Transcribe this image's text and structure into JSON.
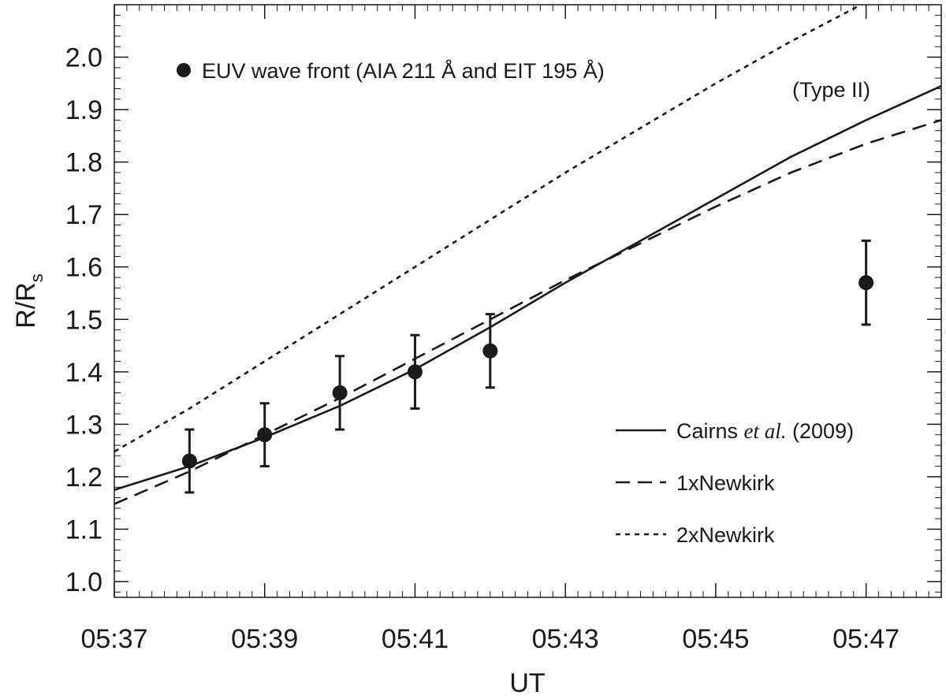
{
  "chart_data": {
    "type": "line",
    "xlabel": "UT",
    "ylabel": "R/R",
    "ylabel_sub": "s",
    "xlim": [
      "05:37",
      "05:48"
    ],
    "ylim": [
      0.97,
      2.1
    ],
    "xticks": [
      "05:37",
      "05:39",
      "05:41",
      "05:43",
      "05:45",
      "05:47"
    ],
    "yticks": [
      "1.0",
      "1.1",
      "1.2",
      "1.3",
      "1.4",
      "1.5",
      "1.6",
      "1.7",
      "1.8",
      "1.9",
      "2.0"
    ],
    "annotation": "(Type II)",
    "points_legend": "EUV wave front (AIA 211 Å and EIT 195 Å)",
    "points": [
      {
        "x": "05:38",
        "y": 1.23,
        "err_low": 1.17,
        "err_high": 1.29
      },
      {
        "x": "05:39",
        "y": 1.28,
        "err_low": 1.22,
        "err_high": 1.34
      },
      {
        "x": "05:40",
        "y": 1.36,
        "err_low": 1.29,
        "err_high": 1.43
      },
      {
        "x": "05:41",
        "y": 1.4,
        "err_low": 1.33,
        "err_high": 1.47
      },
      {
        "x": "05:42",
        "y": 1.44,
        "err_low": 1.37,
        "err_high": 1.51
      },
      {
        "x": "05:47",
        "y": 1.57,
        "err_low": 1.49,
        "err_high": 1.65
      }
    ],
    "series": [
      {
        "name_parts": [
          "Cairns ",
          "et al.",
          " (2009)"
        ],
        "style": "solid",
        "x": [
          "05:37",
          "05:38",
          "05:39",
          "05:40",
          "05:41",
          "05:42",
          "05:43",
          "05:44",
          "05:45",
          "05:46",
          "05:47",
          "05:48"
        ],
        "values": [
          1.175,
          1.22,
          1.275,
          1.335,
          1.405,
          1.485,
          1.57,
          1.65,
          1.73,
          1.81,
          1.88,
          1.945
        ]
      },
      {
        "name_parts": [
          "1xNewkirk"
        ],
        "style": "dashed",
        "x": [
          "05:37",
          "05:38",
          "05:39",
          "05:40",
          "05:41",
          "05:42",
          "05:43",
          "05:44",
          "05:45",
          "05:46",
          "05:47",
          "05:48"
        ],
        "values": [
          1.148,
          1.21,
          1.28,
          1.35,
          1.425,
          1.5,
          1.575,
          1.645,
          1.715,
          1.78,
          1.835,
          1.88
        ]
      },
      {
        "name_parts": [
          "2xNewkirk"
        ],
        "style": "dotted",
        "x": [
          "05:37",
          "05:38",
          "05:39",
          "05:40",
          "05:41",
          "05:42",
          "05:43",
          "05:44",
          "05:45",
          "05:46",
          "05:47",
          "05:48"
        ],
        "values": [
          1.248,
          1.33,
          1.42,
          1.51,
          1.6,
          1.69,
          1.78,
          1.865,
          1.95,
          2.03,
          2.105,
          2.18
        ]
      }
    ],
    "grid": false,
    "legend_position": "lower-right"
  }
}
